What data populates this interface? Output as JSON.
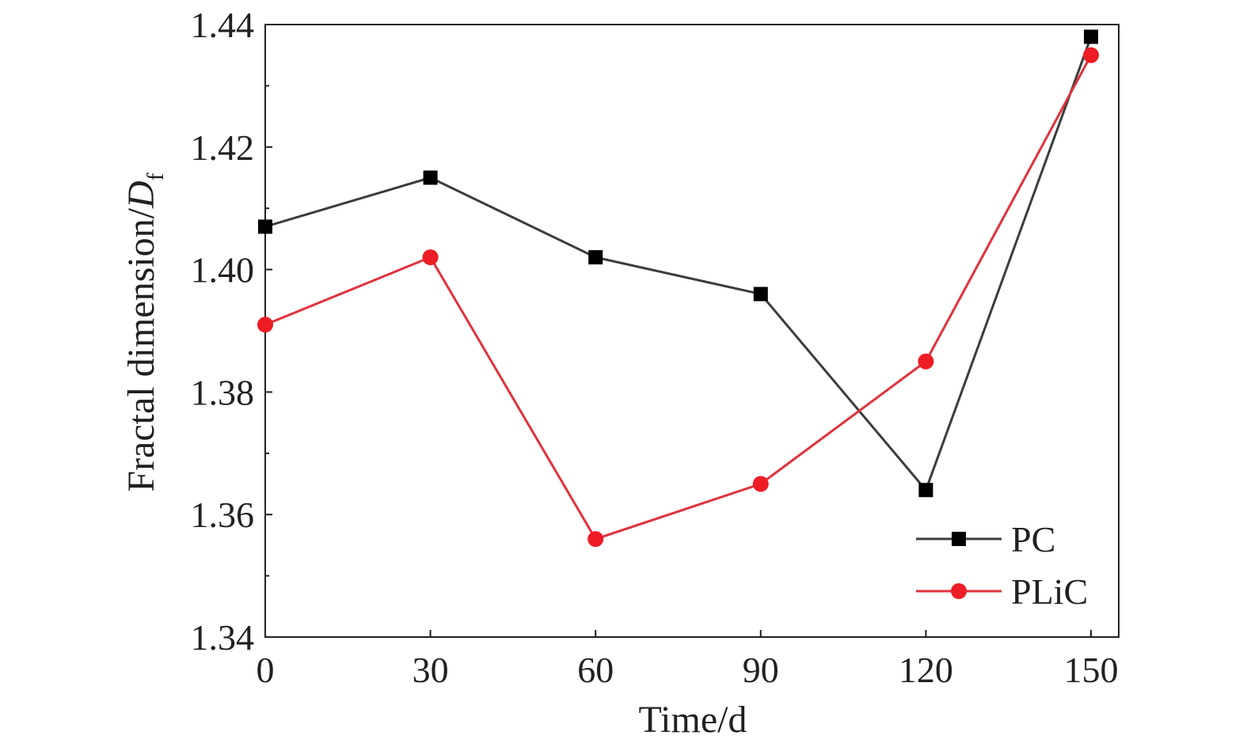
{
  "chart_data": {
    "type": "line",
    "xlabel": "Time/d",
    "ylabel": "Fractal dimension/",
    "ylabel_symbol": "D",
    "ylabel_subscript": "f",
    "x": [
      0,
      30,
      60,
      90,
      120,
      150
    ],
    "x_ticks": [
      "0",
      "30",
      "60",
      "90",
      "120",
      "150"
    ],
    "y_ticks": [
      "1.34",
      "1.36",
      "1.38",
      "1.40",
      "1.42",
      "1.44"
    ],
    "xlim": [
      0,
      155
    ],
    "ylim": [
      1.34,
      1.44
    ],
    "grid": false,
    "legend_position": "bottom-right",
    "series": [
      {
        "name": "PC",
        "values": [
          1.407,
          1.415,
          1.402,
          1.396,
          1.364,
          1.438
        ],
        "color": "#3c3c3c",
        "marker_color": "#000000",
        "marker": "square"
      },
      {
        "name": "PLiC",
        "values": [
          1.391,
          1.402,
          1.356,
          1.365,
          1.385,
          1.435
        ],
        "color": "#e0323c",
        "marker_color": "#ee1c25",
        "marker": "circle"
      }
    ]
  }
}
